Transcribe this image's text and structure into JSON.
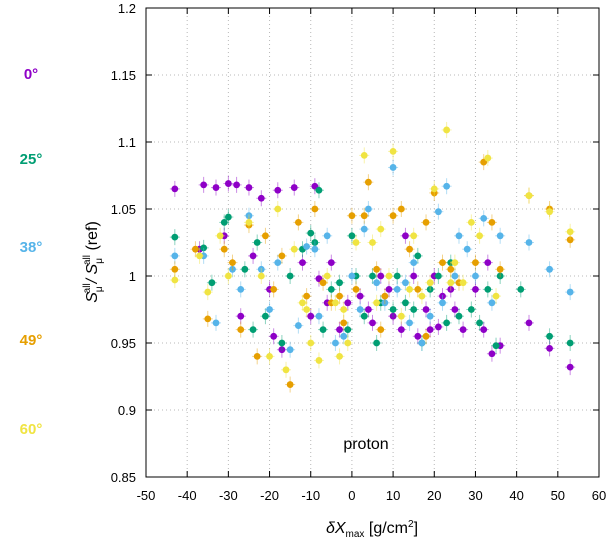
{
  "chart_data": {
    "type": "scatter",
    "title": "",
    "xlabel": {
      "base": "δX",
      "sub": "max",
      "unit": " [g/cm",
      "sup": "2",
      "close": "]"
    },
    "ylabel": {
      "s1": "S",
      "sub1": "μ",
      "sup1": "all",
      "mid": "/ S",
      "sub2": "μ",
      "sup2": "all",
      "tail": " (ref)"
    },
    "xlim": [
      -50,
      60
    ],
    "ylim": [
      0.85,
      1.2
    ],
    "xticks": [
      -50,
      -40,
      -30,
      -20,
      -10,
      0,
      10,
      20,
      30,
      40,
      50,
      60
    ],
    "yticks": [
      "0.85",
      "0.9",
      "0.95",
      "1",
      "1.05",
      "1.1",
      "1.15",
      "1.2"
    ],
    "ytick_values": [
      0.85,
      0.9,
      0.95,
      1.0,
      1.05,
      1.1,
      1.15,
      1.2
    ],
    "grid": true,
    "annotation": "proton",
    "legend_position": "left",
    "series": [
      {
        "name": "0°",
        "color": "#8e00c7",
        "points": [
          [
            -43,
            1.065
          ],
          [
            -36,
            1.068
          ],
          [
            -33,
            1.066
          ],
          [
            -30,
            1.069
          ],
          [
            -28,
            1.068
          ],
          [
            -25,
            1.066
          ],
          [
            -22,
            1.058
          ],
          [
            -18,
            1.064
          ],
          [
            -14,
            1.066
          ],
          [
            -9,
            1.067
          ],
          [
            -24,
            1.015
          ],
          [
            -20,
            0.99
          ],
          [
            -19,
            0.955
          ],
          [
            -12,
            1.01
          ],
          [
            -10,
            0.97
          ],
          [
            -8,
            0.998
          ],
          [
            -5,
            1.01
          ],
          [
            -3,
            0.96
          ],
          [
            2,
            0.985
          ],
          [
            5,
            0.965
          ],
          [
            7,
            1.0
          ],
          [
            9,
            0.99
          ],
          [
            12,
            0.96
          ],
          [
            13,
            1.03
          ],
          [
            16,
            0.955
          ],
          [
            18,
            0.975
          ],
          [
            20,
            1.0
          ],
          [
            21,
            0.962
          ],
          [
            22,
            0.985
          ],
          [
            25,
            0.975
          ],
          [
            27,
            0.96
          ],
          [
            30,
            0.99
          ],
          [
            32,
            0.96
          ],
          [
            34,
            0.942
          ],
          [
            36,
            0.948
          ],
          [
            43,
            0.965
          ],
          [
            48,
            0.946
          ],
          [
            53,
            0.932
          ],
          [
            -37,
            1.02
          ],
          [
            -31,
            1.03
          ],
          [
            -27,
            0.97
          ],
          [
            -17,
            0.945
          ],
          [
            -6,
            0.98
          ],
          [
            -1,
            0.98
          ],
          [
            4,
            0.975
          ],
          [
            10,
            0.97
          ],
          [
            15,
            1.0
          ],
          [
            19,
            0.96
          ],
          [
            24,
            0.99
          ],
          [
            33,
            1.01
          ]
        ]
      },
      {
        "name": "25°",
        "color": "#009e73",
        "points": [
          [
            -43,
            1.029
          ],
          [
            -36,
            1.021
          ],
          [
            -31,
            1.04
          ],
          [
            -30,
            1.044
          ],
          [
            -26,
            1.005
          ],
          [
            -23,
            1.025
          ],
          [
            -21,
            0.97
          ],
          [
            -15,
            1.0
          ],
          [
            -12,
            1.02
          ],
          [
            -10,
            1.032
          ],
          [
            -9,
            1.025
          ],
          [
            -8,
            1.064
          ],
          [
            -5,
            0.99
          ],
          [
            -3,
            0.995
          ],
          [
            -1,
            0.96
          ],
          [
            1,
            1.0
          ],
          [
            3,
            0.97
          ],
          [
            5,
            1.0
          ],
          [
            7,
            0.98
          ],
          [
            10,
            0.975
          ],
          [
            11,
            1.0
          ],
          [
            13,
            0.98
          ],
          [
            15,
            0.975
          ],
          [
            17,
            0.95
          ],
          [
            19,
            0.99
          ],
          [
            21,
            1.0
          ],
          [
            23,
            0.965
          ],
          [
            26,
            0.97
          ],
          [
            29,
            0.975
          ],
          [
            31,
            0.965
          ],
          [
            33,
            0.99
          ],
          [
            35,
            0.948
          ],
          [
            41,
            0.99
          ],
          [
            48,
            0.955
          ],
          [
            53,
            0.95
          ],
          [
            -34,
            0.995
          ],
          [
            -24,
            0.96
          ],
          [
            -17,
            0.95
          ],
          [
            -7,
            0.96
          ],
          [
            0,
            1.03
          ],
          [
            6,
            0.95
          ],
          [
            16,
            1.015
          ],
          [
            24,
            1.01
          ],
          [
            36,
            1.0
          ]
        ]
      },
      {
        "name": "38°",
        "color": "#56b4e9",
        "points": [
          [
            -43,
            1.015
          ],
          [
            -36,
            1.015
          ],
          [
            -29,
            1.005
          ],
          [
            -27,
            0.99
          ],
          [
            -25,
            1.045
          ],
          [
            -22,
            1.005
          ],
          [
            -18,
            1.01
          ],
          [
            -15,
            0.945
          ],
          [
            -13,
            0.963
          ],
          [
            -11,
            1.022
          ],
          [
            -9,
            1.02
          ],
          [
            -6,
            1.03
          ],
          [
            -4,
            0.95
          ],
          [
            -2,
            0.955
          ],
          [
            0,
            1.0
          ],
          [
            2,
            0.975
          ],
          [
            4,
            1.05
          ],
          [
            6,
            0.995
          ],
          [
            8,
            0.98
          ],
          [
            10,
            1.081
          ],
          [
            11,
            0.99
          ],
          [
            13,
            0.995
          ],
          [
            15,
            1.01
          ],
          [
            17,
            0.95
          ],
          [
            19,
            0.97
          ],
          [
            21,
            1.048
          ],
          [
            23,
            1.067
          ],
          [
            25,
            1.0
          ],
          [
            28,
            1.02
          ],
          [
            30,
            1.0
          ],
          [
            32,
            1.043
          ],
          [
            34,
            0.98
          ],
          [
            36,
            1.03
          ],
          [
            43,
            1.025
          ],
          [
            48,
            1.005
          ],
          [
            53,
            0.988
          ],
          [
            -33,
            0.965
          ],
          [
            -20,
            0.975
          ],
          [
            -8,
            0.97
          ],
          [
            3,
            1.035
          ],
          [
            14,
            0.965
          ],
          [
            22,
            0.98
          ],
          [
            26,
            1.03
          ]
        ]
      },
      {
        "name": "49°",
        "color": "#e69f00",
        "points": [
          [
            -43,
            1.005
          ],
          [
            -35,
            0.968
          ],
          [
            -31,
            1.02
          ],
          [
            -29,
            1.01
          ],
          [
            -25,
            1.038
          ],
          [
            -21,
            1.03
          ],
          [
            -19,
            0.99
          ],
          [
            -17,
            1.015
          ],
          [
            -15,
            0.919
          ],
          [
            -13,
            1.04
          ],
          [
            -11,
            0.985
          ],
          [
            -9,
            1.05
          ],
          [
            -7,
            0.995
          ],
          [
            -5,
            0.98
          ],
          [
            -2,
            0.965
          ],
          [
            0,
            1.045
          ],
          [
            1,
            0.99
          ],
          [
            3,
            1.045
          ],
          [
            4,
            1.07
          ],
          [
            6,
            1.005
          ],
          [
            8,
            0.985
          ],
          [
            10,
            1.045
          ],
          [
            12,
            1.05
          ],
          [
            14,
            1.02
          ],
          [
            16,
            0.99
          ],
          [
            18,
            1.04
          ],
          [
            20,
            1.062
          ],
          [
            22,
            1.01
          ],
          [
            24,
            1.005
          ],
          [
            26,
            0.995
          ],
          [
            30,
            1.01
          ],
          [
            32,
            1.085
          ],
          [
            34,
            1.04
          ],
          [
            36,
            1.005
          ],
          [
            43,
            1.06
          ],
          [
            48,
            1.05
          ],
          [
            53,
            1.027
          ],
          [
            -38,
            1.02
          ],
          [
            -27,
            0.96
          ],
          [
            -23,
            0.94
          ],
          [
            -3,
            0.985
          ],
          [
            7,
            0.96
          ],
          [
            18,
            0.955
          ]
        ]
      },
      {
        "name": "60°",
        "color": "#f0e442",
        "points": [
          [
            -43,
            0.997
          ],
          [
            -35,
            0.988
          ],
          [
            -32,
            1.03
          ],
          [
            -30,
            1.0
          ],
          [
            -25,
            1.04
          ],
          [
            -20,
            0.94
          ],
          [
            -16,
            0.93
          ],
          [
            -14,
            1.02
          ],
          [
            -12,
            0.98
          ],
          [
            -10,
            0.95
          ],
          [
            -8,
            0.937
          ],
          [
            -6,
            1.0
          ],
          [
            -4,
            0.98
          ],
          [
            -3,
            0.94
          ],
          [
            -1,
            0.95
          ],
          [
            1,
            1.025
          ],
          [
            3,
            1.09
          ],
          [
            5,
            1.025
          ],
          [
            7,
            1.035
          ],
          [
            9,
            1.0
          ],
          [
            10,
            1.093
          ],
          [
            12,
            0.97
          ],
          [
            14,
            0.99
          ],
          [
            15,
            1.03
          ],
          [
            17,
            0.985
          ],
          [
            20,
            1.065
          ],
          [
            23,
            1.109
          ],
          [
            25,
            1.01
          ],
          [
            27,
            0.995
          ],
          [
            31,
            1.03
          ],
          [
            33,
            1.088
          ],
          [
            35,
            0.985
          ],
          [
            43,
            1.06
          ],
          [
            48,
            1.048
          ],
          [
            53,
            1.033
          ],
          [
            -37,
            1.015
          ],
          [
            -22,
            1.0
          ],
          [
            -18,
            1.05
          ],
          [
            -11,
            0.975
          ],
          [
            -2,
            0.975
          ],
          [
            6,
            0.98
          ],
          [
            19,
            0.995
          ],
          [
            24,
            0.995
          ],
          [
            29,
            1.04
          ]
        ]
      }
    ]
  }
}
